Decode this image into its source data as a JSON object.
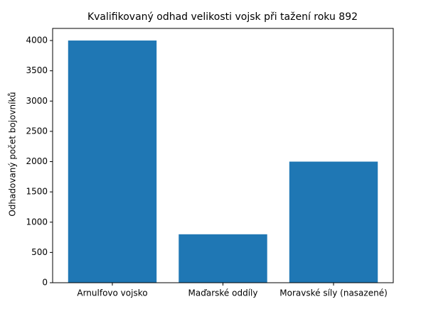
{
  "chart_data": {
    "type": "bar",
    "title": "Kvalifikovaný odhad velikosti vojsk při tažení roku 892",
    "y_label": "Odhadovaný počet bojovníků",
    "categories": [
      "Arnulfovo vojsko",
      "Maďarské oddíly",
      "Moravské síly (nasazené)"
    ],
    "values": [
      4000,
      800,
      2000
    ],
    "color": "#1f77b4",
    "ylim": [
      0,
      4200
    ],
    "yticks": [
      0,
      500,
      1000,
      1500,
      2000,
      2500,
      3000,
      3500,
      4000
    ],
    "grid": false
  }
}
